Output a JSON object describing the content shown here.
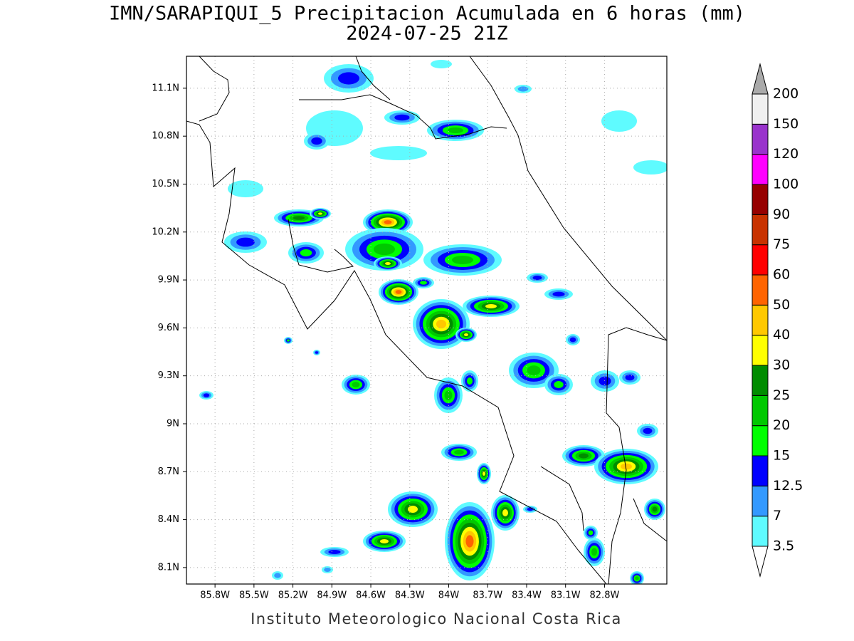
{
  "map": {
    "title": "IMN/SARAPIQUI_5 Precipitacion Acumulada en 6 horas (mm)",
    "subtitle": "2024-07-25 21Z",
    "footer": "Instituto Meteorologico Nacional Costa Rica",
    "xlim": [
      -86.02,
      -82.32
    ],
    "ylim": [
      7.997,
      11.3
    ],
    "grid": true,
    "lon_ticks": [
      {
        "value": -85.8,
        "label": "85.8W"
      },
      {
        "value": -85.5,
        "label": "85.5W"
      },
      {
        "value": -85.2,
        "label": "85.2W"
      },
      {
        "value": -84.9,
        "label": "84.9W"
      },
      {
        "value": -84.6,
        "label": "84.6W"
      },
      {
        "value": -84.3,
        "label": "84.3W"
      },
      {
        "value": -84.0,
        "label": "84W"
      },
      {
        "value": -83.7,
        "label": "83.7W"
      },
      {
        "value": -83.4,
        "label": "83.4W"
      },
      {
        "value": -83.1,
        "label": "83.1W"
      },
      {
        "value": -82.8,
        "label": "82.8W"
      }
    ],
    "lat_ticks": [
      {
        "value": 11.1,
        "label": "11.1N"
      },
      {
        "value": 10.8,
        "label": "10.8N"
      },
      {
        "value": 10.5,
        "label": "10.5N"
      },
      {
        "value": 10.2,
        "label": "10.2N"
      },
      {
        "value": 9.9,
        "label": "9.9N"
      },
      {
        "value": 9.6,
        "label": "9.6N"
      },
      {
        "value": 9.3,
        "label": "9.3N"
      },
      {
        "value": 9.0,
        "label": "9N"
      },
      {
        "value": 8.7,
        "label": "8.7N"
      },
      {
        "value": 8.4,
        "label": "8.4N"
      },
      {
        "value": 8.1,
        "label": "8.1N"
      }
    ],
    "colorbar": {
      "levels": [
        3.5,
        7,
        12.5,
        15,
        20,
        25,
        30,
        40,
        50,
        60,
        75,
        90,
        100,
        120,
        150,
        200
      ],
      "colors": [
        "#ffffff",
        "#5ffbff",
        "#3399ff",
        "#0000ff",
        "#00ff00",
        "#00c800",
        "#008c00",
        "#ffff00",
        "#ffc800",
        "#ff6400",
        "#ff0000",
        "#c83200",
        "#960000",
        "#ff00ff",
        "#9933cc",
        "#f0f0f0",
        "#aaaaaa"
      ]
    }
  }
}
